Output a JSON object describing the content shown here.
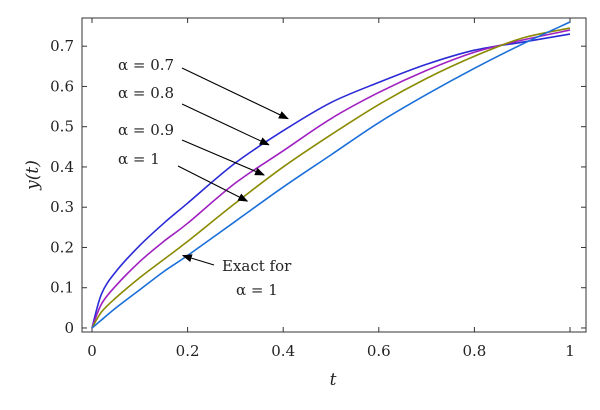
{
  "chart_data": {
    "type": "line",
    "xlabel": "t",
    "ylabel": "y(t)",
    "xlim": [
      0,
      1
    ],
    "ylim": [
      -0.01,
      0.77
    ],
    "x_ticks": [
      "0",
      "0.2",
      "0.4",
      "0.6",
      "0.8",
      "1"
    ],
    "y_ticks": [
      "0",
      "0.1",
      "0.2",
      "0.3",
      "0.4",
      "0.5",
      "0.6",
      "0.7"
    ],
    "x": [
      0,
      0.02,
      0.05,
      0.1,
      0.15,
      0.2,
      0.3,
      0.4,
      0.5,
      0.6,
      0.7,
      0.8,
      0.9,
      1.0
    ],
    "series": [
      {
        "name": "α = 0.7",
        "color": "#2a2ad6",
        "values": [
          0,
          0.085,
          0.14,
          0.205,
          0.26,
          0.31,
          0.41,
          0.49,
          0.56,
          0.61,
          0.655,
          0.69,
          0.71,
          0.73
        ]
      },
      {
        "name": "α = 0.8",
        "color": "#a020c0",
        "values": [
          0,
          0.06,
          0.105,
          0.165,
          0.215,
          0.26,
          0.36,
          0.44,
          0.52,
          0.585,
          0.64,
          0.685,
          0.715,
          0.74
        ]
      },
      {
        "name": "α = 0.9",
        "color": "#8a8a00",
        "values": [
          0,
          0.04,
          0.075,
          0.125,
          0.17,
          0.215,
          0.31,
          0.4,
          0.48,
          0.555,
          0.62,
          0.675,
          0.72,
          0.745
        ]
      },
      {
        "name": "α = 1",
        "color": "#1a6fd8",
        "values": [
          0,
          0.02,
          0.05,
          0.095,
          0.14,
          0.18,
          0.265,
          0.35,
          0.43,
          0.51,
          0.58,
          0.645,
          0.705,
          0.76
        ]
      }
    ],
    "annotations": [
      {
        "line1": "α = 0.7",
        "line2": "",
        "arrow_to": [
          0.41,
          0.52
        ]
      },
      {
        "line1": "α = 0.8",
        "line2": "",
        "arrow_to": [
          0.37,
          0.455
        ]
      },
      {
        "line1": "α = 0.9",
        "line2": "",
        "arrow_to": [
          0.36,
          0.38
        ]
      },
      {
        "line1": "α = 1",
        "line2": "",
        "arrow_to": [
          0.325,
          0.315
        ]
      },
      {
        "line1": "Exact for",
        "line2": "α = 1",
        "arrow_to": [
          0.19,
          0.18
        ]
      }
    ]
  }
}
